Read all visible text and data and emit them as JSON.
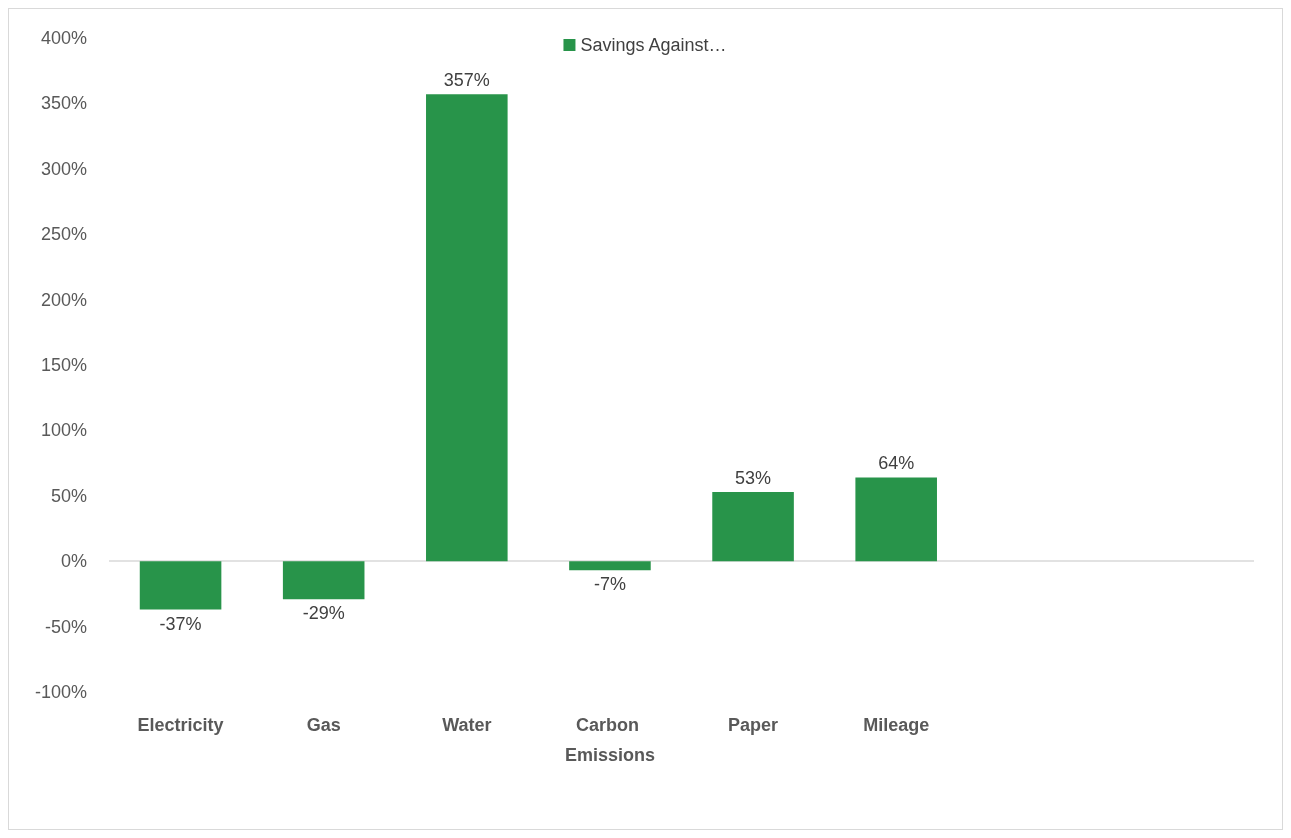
{
  "chart_data": {
    "type": "bar",
    "categories": [
      "Electricity",
      "Gas",
      "Water",
      "Carbon Emissions",
      "Paper",
      "Mileage",
      null,
      null
    ],
    "series": [
      {
        "name": "Savings Against…",
        "color": "#28944a",
        "values": [
          -37,
          -29,
          357,
          -7,
          53,
          64,
          null,
          null
        ],
        "value_labels": [
          "-37%",
          "-29%",
          "357%",
          "-7%",
          "53%",
          "64%",
          null,
          null
        ]
      }
    ],
    "ylim": [
      -100,
      400
    ],
    "yticks": [
      {
        "value": -100,
        "label": "-100%"
      },
      {
        "value": -50,
        "label": "-50%"
      },
      {
        "value": 0,
        "label": "0%"
      },
      {
        "value": 50,
        "label": "50%"
      },
      {
        "value": 100,
        "label": "100%"
      },
      {
        "value": 150,
        "label": "150%"
      },
      {
        "value": 200,
        "label": "200%"
      },
      {
        "value": 250,
        "label": "250%"
      },
      {
        "value": 300,
        "label": "300%"
      },
      {
        "value": 350,
        "label": "350%"
      },
      {
        "value": 400,
        "label": "400%"
      }
    ],
    "ref_lines": [
      {
        "axis": "y",
        "value": 0,
        "color": "#d9d9d9"
      }
    ],
    "grid": false,
    "legend": "top"
  }
}
